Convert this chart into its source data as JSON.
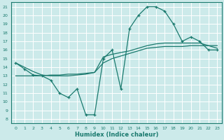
{
  "xlabel": "Humidex (Indice chaleur)",
  "bg_color": "#cceaea",
  "grid_color": "#ffffff",
  "line_color": "#1a7a6e",
  "xlim": [
    -0.5,
    23.5
  ],
  "ylim": [
    7.5,
    21.5
  ],
  "xticks": [
    0,
    1,
    2,
    3,
    4,
    5,
    6,
    7,
    8,
    9,
    10,
    11,
    12,
    13,
    14,
    15,
    16,
    17,
    18,
    19,
    20,
    21,
    22,
    23
  ],
  "yticks": [
    8,
    9,
    10,
    11,
    12,
    13,
    14,
    15,
    16,
    17,
    18,
    19,
    20,
    21
  ],
  "line1_x": [
    0,
    1,
    2,
    3,
    4,
    5,
    6,
    7,
    8,
    9,
    10,
    11,
    12,
    13,
    14,
    15,
    16,
    17,
    18,
    19,
    20,
    21,
    22,
    23
  ],
  "line1_y": [
    14.5,
    13.8,
    13.1,
    13.0,
    12.5,
    11.0,
    10.5,
    11.5,
    8.5,
    8.5,
    15.0,
    16.0,
    11.5,
    18.5,
    20.0,
    21.0,
    21.0,
    20.5,
    19.0,
    17.0,
    17.5,
    17.0,
    16.0,
    16.0
  ],
  "line2_x": [
    0,
    1,
    2,
    3,
    4,
    5,
    6,
    7,
    8,
    9,
    10,
    11,
    12,
    13,
    14,
    15,
    16,
    17,
    18,
    19,
    20,
    21,
    22,
    23
  ],
  "line2_y": [
    13.0,
    13.0,
    13.0,
    13.0,
    13.1,
    13.1,
    13.2,
    13.2,
    13.3,
    13.4,
    14.5,
    15.0,
    15.3,
    15.6,
    15.9,
    16.2,
    16.3,
    16.4,
    16.4,
    16.4,
    16.5,
    16.5,
    16.5,
    16.5
  ],
  "line3_x": [
    0,
    1,
    2,
    3,
    4,
    5,
    6,
    7,
    8,
    9,
    10,
    11,
    12,
    13,
    14,
    15,
    16,
    17,
    18,
    19,
    20,
    21,
    22,
    23
  ],
  "line3_y": [
    14.5,
    14.0,
    13.5,
    13.1,
    13.0,
    13.0,
    13.0,
    13.1,
    13.2,
    13.4,
    15.2,
    15.5,
    15.7,
    15.9,
    16.2,
    16.5,
    16.7,
    16.8,
    16.8,
    16.8,
    16.8,
    16.8,
    16.5,
    16.2
  ]
}
